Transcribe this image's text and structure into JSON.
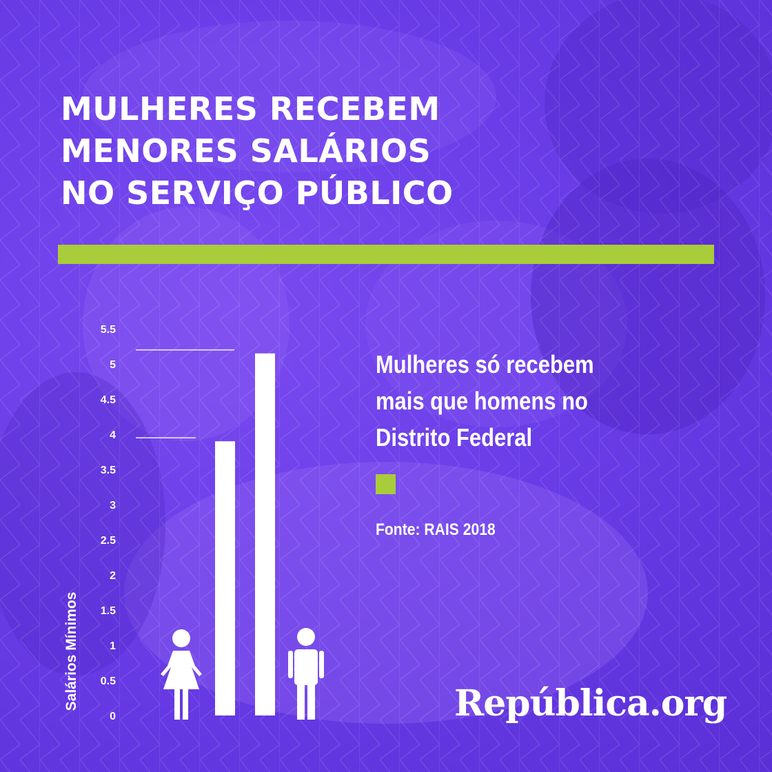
{
  "headline": {
    "line1": "MULHERES RECEBEM",
    "line2": "MENORES SALÁRIOS",
    "line3": "NO SERVIÇO PÚBLICO"
  },
  "note": "Mulheres só recebem mais que homens no Distrito Federal",
  "source": "Fonte: RAIS 2018",
  "logo": "República.org",
  "colors": {
    "background": "#6a3de8",
    "accent_green": "#a8cc3a",
    "text": "#ffffff"
  },
  "icons": {
    "women": "woman-icon",
    "men": "man-icon"
  },
  "chart_data": {
    "type": "bar",
    "ylabel": "Salários Mínimos",
    "ylim": [
      0,
      5.5
    ],
    "yticks": [
      "0",
      "0.5",
      "1",
      "1.5",
      "2",
      "2.5",
      "3",
      "3.5",
      "4",
      "4.5",
      "5",
      "5.5"
    ],
    "series": [
      {
        "icon": "woman-icon",
        "values": [
          3.9,
          5.15
        ]
      }
    ],
    "reference_lines": [
      {
        "value": 5.2
      },
      {
        "value": 3.95
      }
    ],
    "grid": false,
    "legend": "none"
  }
}
